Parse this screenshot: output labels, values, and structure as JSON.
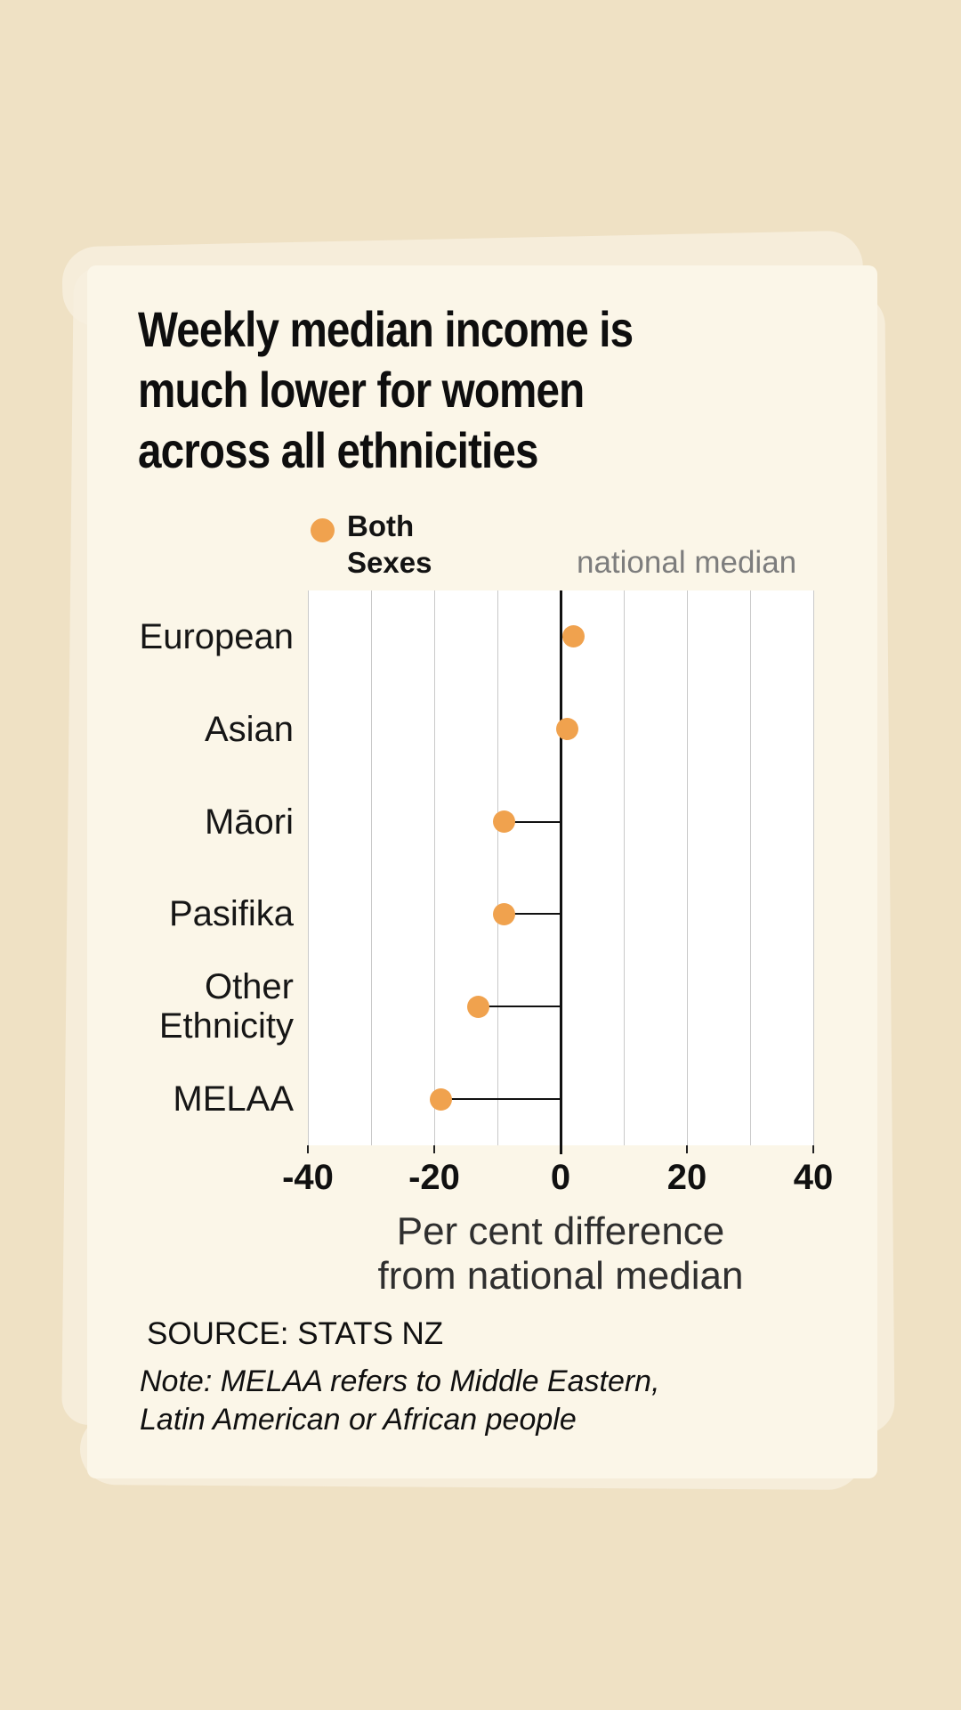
{
  "header": {
    "title": "Weekly median income is\nmuch lower for women\nacross all ethnicities"
  },
  "legend": {
    "series_label": "Both\nSexes",
    "dot_color": "#f0a24e"
  },
  "chart_data": {
    "type": "scatter",
    "orientation": "horizontal-dot-plot",
    "categories": [
      "European",
      "Asian",
      "Māori",
      "Pasifika",
      "Other Ethnicity",
      "MELAA"
    ],
    "values": [
      2,
      1,
      -9,
      -9,
      -13,
      -19
    ],
    "series": [
      {
        "name": "Both Sexes",
        "values": [
          2,
          1,
          -9,
          -9,
          -13,
          -19
        ]
      }
    ],
    "annotation": "national median",
    "xlabel": "Per cent difference\nfrom national median",
    "xticks": [
      -40,
      -20,
      0,
      20,
      40
    ],
    "xtick_labels": [
      "-40",
      "-20",
      "0",
      "20",
      "40"
    ],
    "xlim": [
      -40,
      40
    ],
    "gridline_step": 10,
    "grid": true,
    "zero_line": true,
    "dot_color": "#f0a24e",
    "colors": {
      "background": "#efe1c4",
      "panel": "#fbf6e8",
      "plot_background": "#ffffff",
      "gridline": "#c9c9c9",
      "axis": "#111111",
      "annotation_text": "#7d7d7d"
    }
  },
  "footer": {
    "source": "SOURCE: STATS NZ",
    "note": "Note: MELAA refers to Middle Eastern,\nLatin American or African people"
  }
}
